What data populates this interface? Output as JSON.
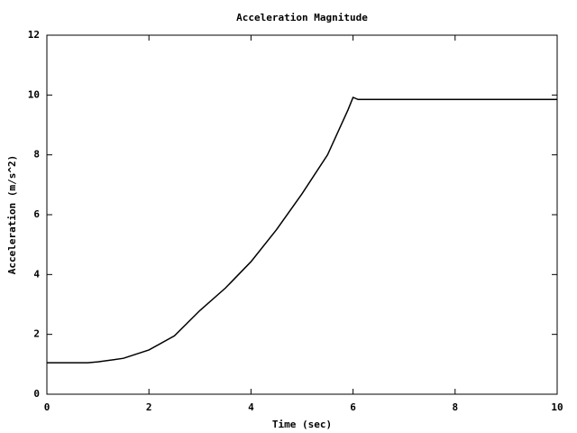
{
  "chart_data": {
    "type": "line",
    "title": "Acceleration Magnitude",
    "x_label": "Time (sec)",
    "y_label": "Acceleration (m/s^2)",
    "x": [
      0,
      0.5,
      0.8,
      1,
      1.5,
      2,
      2.5,
      3,
      3.5,
      4,
      4.5,
      5,
      5.5,
      5.9,
      6,
      6.1,
      10
    ],
    "series": [
      {
        "color": "#000000",
        "values": [
          1.05,
          1.05,
          1.05,
          1.08,
          1.2,
          1.48,
          1.95,
          2.8,
          3.55,
          4.43,
          5.5,
          6.7,
          8.0,
          9.5,
          9.92,
          9.85,
          9.85
        ]
      }
    ],
    "xlim": [
      0,
      10
    ],
    "xticks": [
      0,
      2,
      4,
      6,
      8,
      10
    ],
    "ylim": [
      0,
      12
    ],
    "yticks": [
      0,
      2,
      4,
      6,
      8,
      10,
      12
    ],
    "grid": false
  }
}
